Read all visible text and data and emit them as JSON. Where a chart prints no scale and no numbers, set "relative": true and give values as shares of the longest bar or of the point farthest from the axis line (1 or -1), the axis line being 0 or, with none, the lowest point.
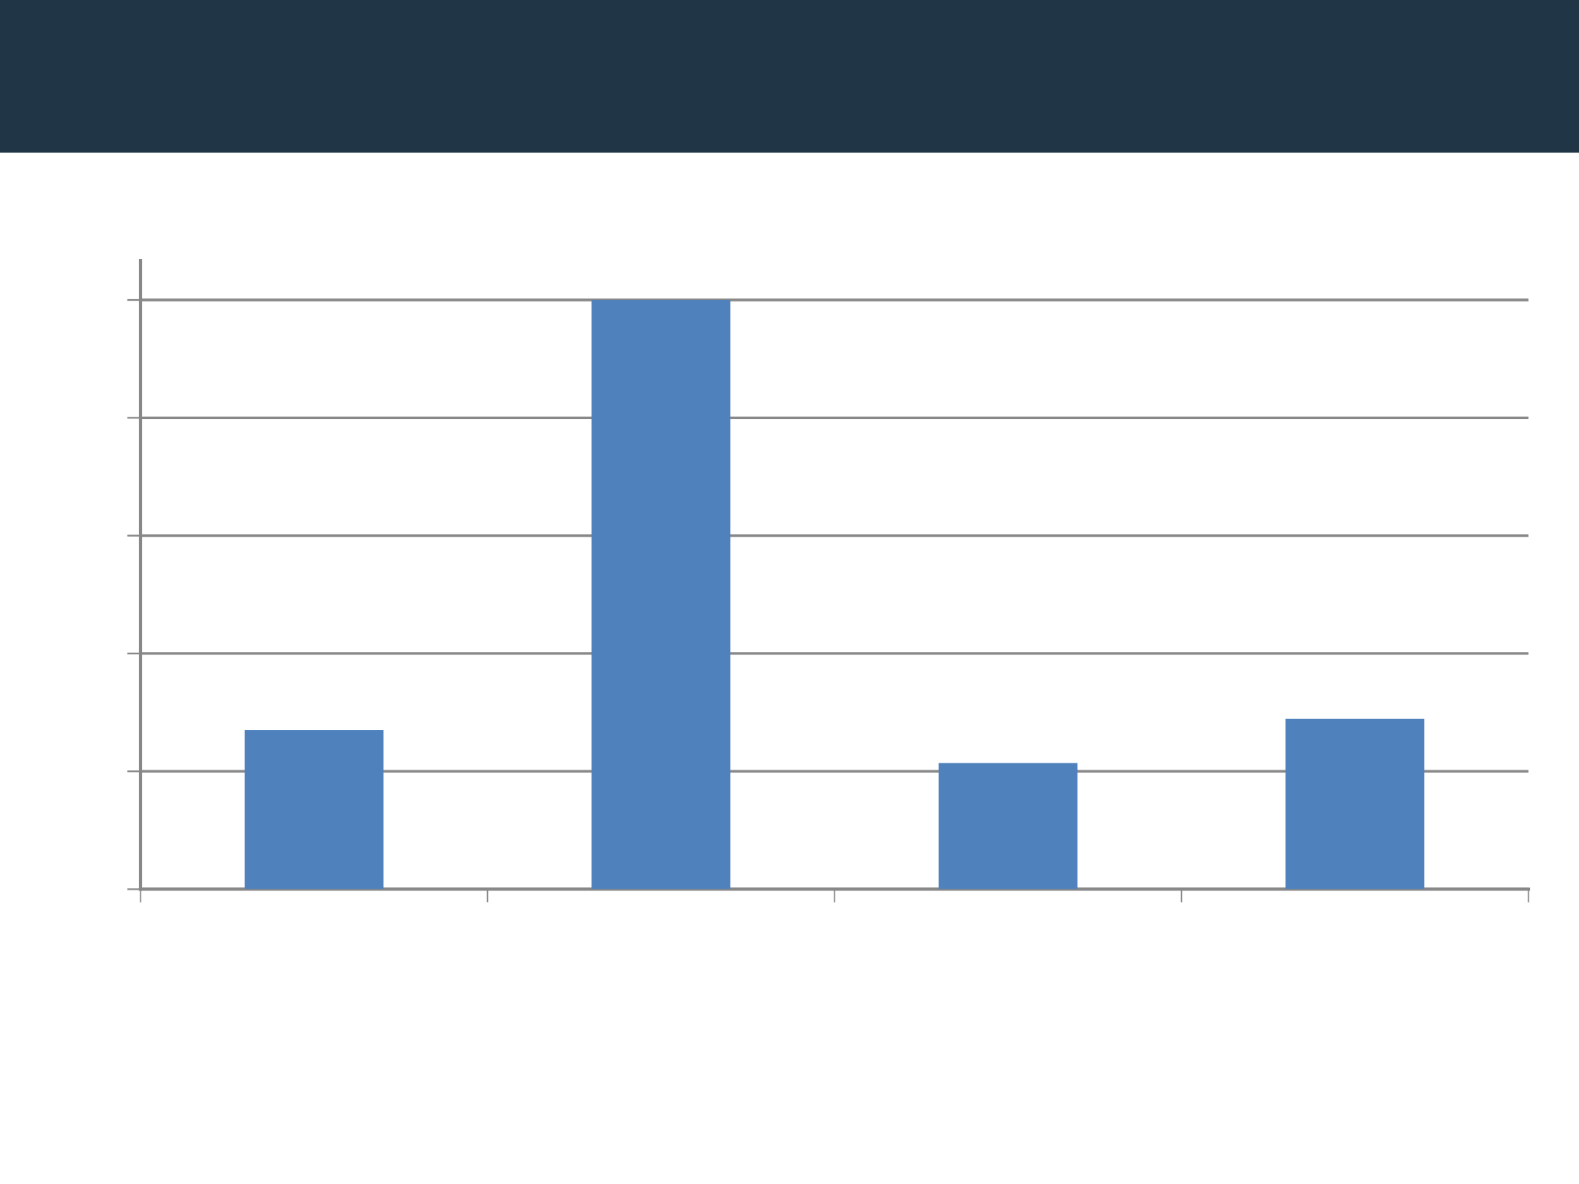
{
  "chart_data": {
    "type": "bar",
    "relative": true,
    "categories": [
      null,
      null,
      null,
      null
    ],
    "values": [
      0.27,
      1,
      0.214,
      0.289
    ],
    "color": "#4f81bd",
    "grid": "y",
    "legend": false
  }
}
